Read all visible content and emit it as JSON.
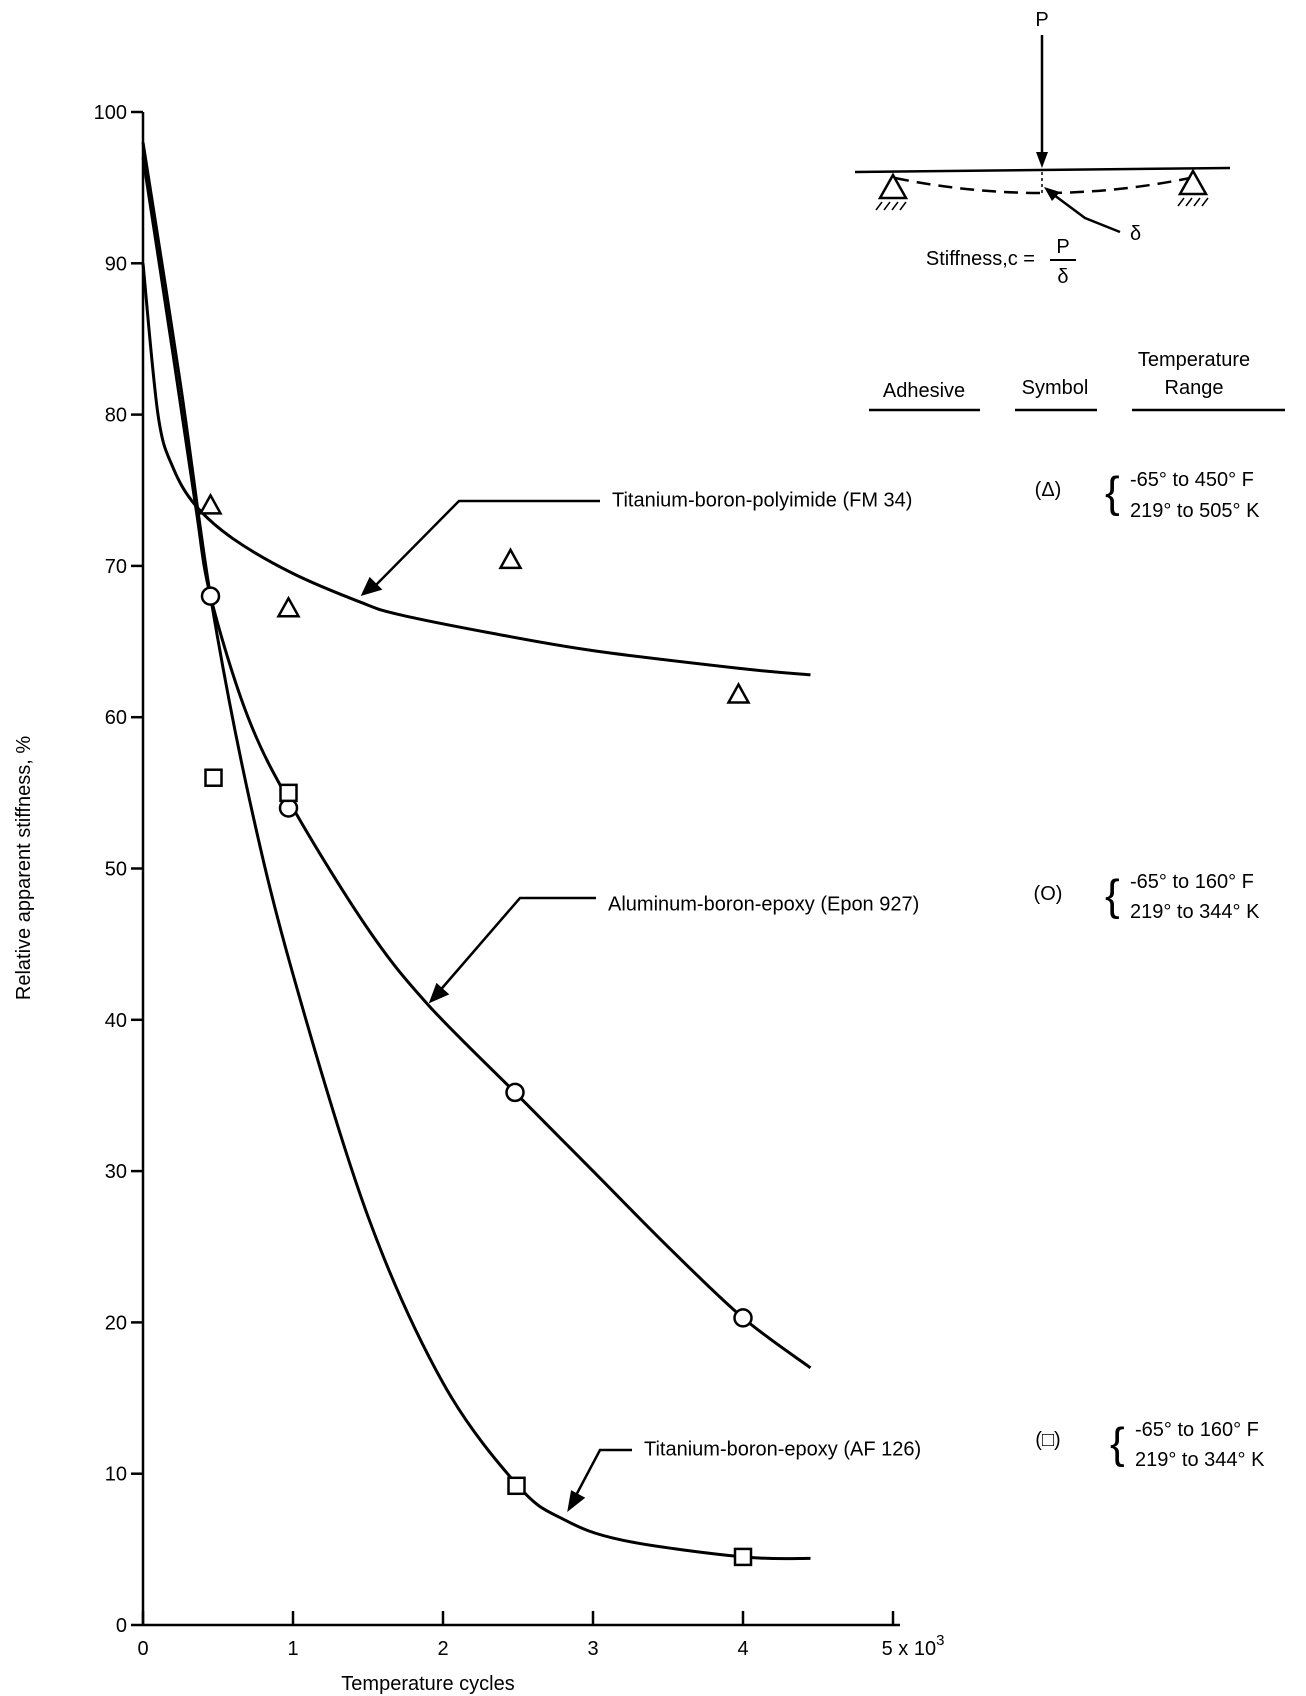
{
  "chart_data": {
    "type": "scatter",
    "xlabel": "Temperature cycles",
    "ylabel": "Relative apparent stiffness, %",
    "xlim": [
      0,
      5
    ],
    "ylim": [
      0,
      100
    ],
    "x_ticks": [
      "0",
      "1",
      "2",
      "3",
      "4",
      "5 x 10"
    ],
    "x_ticks_exponent": "3",
    "y_ticks": [
      "0",
      "10",
      "20",
      "30",
      "40",
      "50",
      "60",
      "70",
      "80",
      "90",
      "100"
    ],
    "grid": false,
    "legend_headers": {
      "adhesive": "Adhesive",
      "symbol": "Symbol",
      "temperature_line1": "Temperature",
      "temperature_line2": "Range"
    },
    "series": [
      {
        "name": "Titanium-boron-polyimide (FM 34)",
        "symbol": "triangle",
        "symbol_label": "(Δ)",
        "temp_range_f": "-65° to 450° F",
        "temp_range_k": "219° to 505° K",
        "points": [
          [
            0.45,
            74
          ],
          [
            0.97,
            67.2
          ],
          [
            2.45,
            70.4
          ],
          [
            3.97,
            61.5
          ]
        ],
        "curve": [
          [
            0,
            90
          ],
          [
            0.1,
            80
          ],
          [
            0.2,
            76.5
          ],
          [
            0.35,
            74
          ],
          [
            0.6,
            71.8
          ],
          [
            1.0,
            69.5
          ],
          [
            1.45,
            67.6
          ],
          [
            1.7,
            66.8
          ],
          [
            2.3,
            65.6
          ],
          [
            3.0,
            64.4
          ],
          [
            4.0,
            63.2
          ],
          [
            4.45,
            62.8
          ]
        ]
      },
      {
        "name": "Aluminum-boron-epoxy (Epon 927)",
        "symbol": "circle",
        "symbol_label": "(O)",
        "temp_range_f": "-65° to 160° F",
        "temp_range_k": "219° to 344° K",
        "points": [
          [
            0.45,
            68
          ],
          [
            0.97,
            54
          ],
          [
            2.48,
            35.2
          ],
          [
            4.0,
            20.3
          ]
        ],
        "curve": [
          [
            0,
            97
          ],
          [
            0.2,
            84
          ],
          [
            0.35,
            74
          ],
          [
            0.45,
            68
          ],
          [
            0.7,
            60
          ],
          [
            1.0,
            54
          ],
          [
            1.5,
            46
          ],
          [
            1.9,
            41
          ],
          [
            2.5,
            35
          ],
          [
            3.0,
            30
          ],
          [
            3.5,
            25
          ],
          [
            4.0,
            20.3
          ],
          [
            4.45,
            17
          ]
        ]
      },
      {
        "name": "Titanium-boron-epoxy (AF 126)",
        "symbol": "square",
        "symbol_label": "(□)",
        "temp_range_f": "-65° to 160° F",
        "temp_range_k": "219° to 344° K",
        "points": [
          [
            0.47,
            56
          ],
          [
            0.97,
            55
          ],
          [
            2.49,
            9.2
          ],
          [
            4.0,
            4.5
          ]
        ],
        "curve": [
          [
            0,
            98
          ],
          [
            0.25,
            82
          ],
          [
            0.45,
            68
          ],
          [
            0.7,
            55
          ],
          [
            1.0,
            43
          ],
          [
            1.5,
            27
          ],
          [
            2.0,
            16
          ],
          [
            2.5,
            9.2
          ],
          [
            2.8,
            7
          ],
          [
            3.2,
            5.6
          ],
          [
            4.0,
            4.5
          ],
          [
            4.45,
            4.4
          ]
        ]
      }
    ],
    "inset": {
      "load_label": "P",
      "deflection_label": "δ",
      "formula_prefix": "Stiffness,c =",
      "formula_numerator": "P",
      "formula_denominator": "δ"
    }
  }
}
